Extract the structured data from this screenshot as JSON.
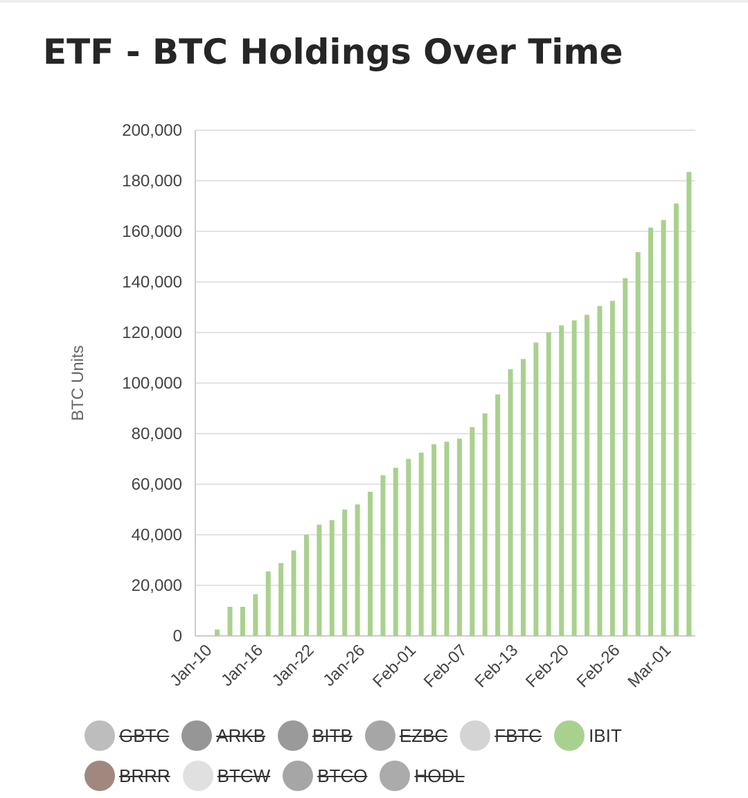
{
  "title": "ETF - BTC Holdings Over Time",
  "chart_data": {
    "type": "bar",
    "title": "ETF - BTC Holdings Over Time",
    "ylabel": "BTC Units",
    "xlabel": "",
    "ylim": [
      0,
      200000
    ],
    "yticks": [
      "0",
      "20,000",
      "40,000",
      "60,000",
      "80,000",
      "100,000",
      "120,000",
      "140,000",
      "160,000",
      "180,000",
      "200,000"
    ],
    "x_tick_labels": [
      {
        "label": "Jan-10",
        "index": 0
      },
      {
        "label": "Jan-16",
        "index": 4
      },
      {
        "label": "Jan-22",
        "index": 8
      },
      {
        "label": "Jan-26",
        "index": 12
      },
      {
        "label": "Feb-01",
        "index": 16
      },
      {
        "label": "Feb-07",
        "index": 20
      },
      {
        "label": "Feb-13",
        "index": 24
      },
      {
        "label": "Feb-20",
        "index": 28
      },
      {
        "label": "Feb-26",
        "index": 32
      },
      {
        "label": "Mar-01",
        "index": 36
      }
    ],
    "grid": true,
    "legend_position": "bottom",
    "series": [
      {
        "name": "IBIT",
        "color": "#a9d18e",
        "values": [
          0,
          2500,
          11500,
          11500,
          16500,
          25500,
          28800,
          33800,
          40000,
          44000,
          45800,
          50000,
          52000,
          57000,
          63500,
          66500,
          70000,
          72500,
          75800,
          76800,
          78000,
          82600,
          88000,
          95500,
          105500,
          109500,
          116000,
          120000,
          122800,
          124800,
          127000,
          130500,
          132500,
          141500,
          151800,
          161500,
          164500,
          171000,
          183500
        ]
      }
    ]
  },
  "legend": [
    [
      {
        "label": "GBTC",
        "color": "#bdbdbd",
        "active": false
      },
      {
        "label": "ARKB",
        "color": "#969696",
        "active": false
      },
      {
        "label": "BITB",
        "color": "#9a9a9a",
        "active": false
      },
      {
        "label": "EZBC",
        "color": "#a6a6a6",
        "active": false
      },
      {
        "label": "FBTC",
        "color": "#d4d4d4",
        "active": false
      },
      {
        "label": "IBIT",
        "color": "#a9d18e",
        "active": true
      }
    ],
    [
      {
        "label": "BRRR",
        "color": "#a1887f",
        "active": false
      },
      {
        "label": "BTCW",
        "color": "#e0e0e0",
        "active": false
      },
      {
        "label": "BTCO",
        "color": "#a6a6a6",
        "active": false
      },
      {
        "label": "HODL",
        "color": "#ababab",
        "active": false
      }
    ]
  ]
}
